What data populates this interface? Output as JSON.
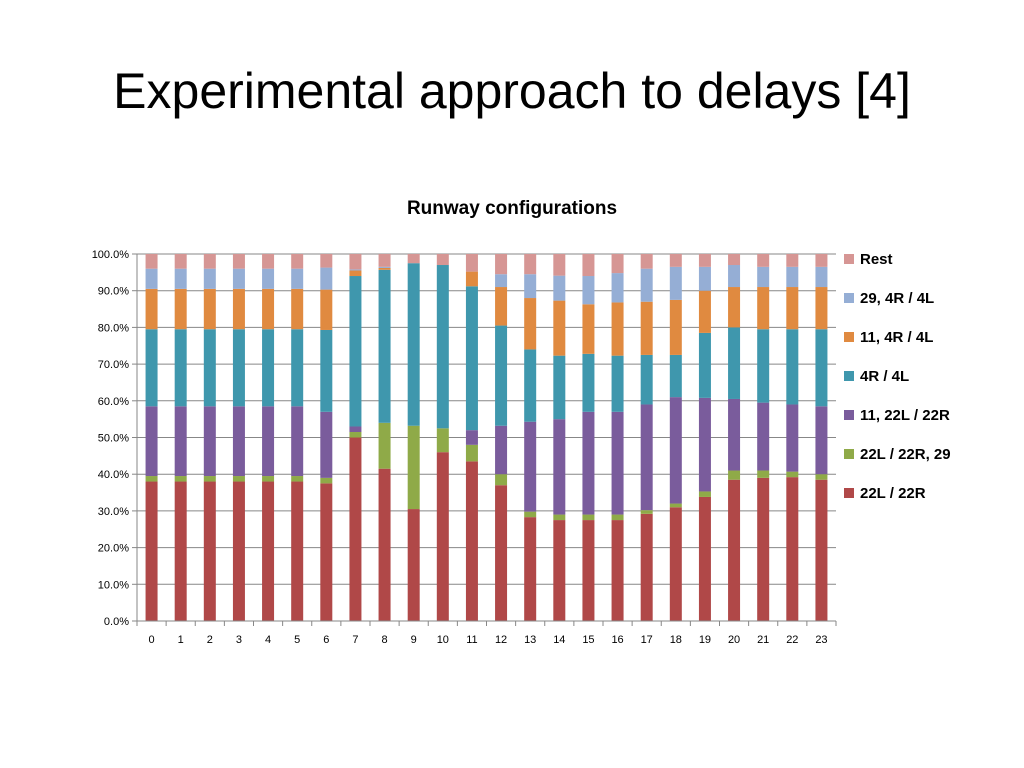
{
  "slide": {
    "title": "Experimental approach to delays [4]"
  },
  "chart_data": {
    "type": "bar",
    "stacked": true,
    "normalized": true,
    "title": "Runway configurations",
    "xlabel": "",
    "ylabel": "",
    "ylim": [
      0,
      100
    ],
    "y_ticks": [
      "0.0%",
      "10.0%",
      "20.0%",
      "30.0%",
      "40.0%",
      "50.0%",
      "60.0%",
      "70.0%",
      "80.0%",
      "90.0%",
      "100.0%"
    ],
    "grid": true,
    "legend_position": "right",
    "categories": [
      "0",
      "1",
      "2",
      "3",
      "4",
      "5",
      "6",
      "7",
      "8",
      "9",
      "10",
      "11",
      "12",
      "13",
      "14",
      "15",
      "16",
      "17",
      "18",
      "19",
      "20",
      "21",
      "22",
      "23"
    ],
    "series": [
      {
        "name": "22L / 22R",
        "color": "#b04848",
        "values": [
          38,
          38,
          38,
          38,
          38,
          38,
          37.5,
          50,
          41.5,
          30.5,
          46,
          43.5,
          37,
          28.3,
          27.5,
          27.5,
          27.5,
          29.2,
          31,
          33.8,
          38.5,
          39,
          39.2,
          38.5
        ]
      },
      {
        "name": "22L / 22R, 29",
        "color": "#8faa48",
        "values": [
          1.5,
          1.5,
          1.5,
          1.5,
          1.5,
          1.5,
          1.5,
          1.5,
          12.5,
          22.7,
          6.5,
          4.5,
          3,
          1.5,
          1.5,
          1.5,
          1.5,
          1,
          1,
          1.5,
          2.5,
          2,
          1.5,
          1.5
        ]
      },
      {
        "name": "11, 22L / 22R",
        "color": "#7a5c9c",
        "values": [
          19,
          19,
          19,
          19,
          19,
          19,
          18,
          1.5,
          0,
          0,
          0,
          4,
          13.2,
          24.5,
          26,
          28,
          28,
          28.8,
          29,
          25.5,
          19.5,
          18.5,
          18.3,
          18.5
        ]
      },
      {
        "name": "4R / 4L",
        "color": "#3f97ad",
        "values": [
          21,
          21,
          21,
          21,
          21,
          21,
          22.3,
          41,
          41.7,
          44.3,
          44.5,
          39.2,
          27.3,
          19.7,
          17.3,
          15.8,
          15.3,
          13.5,
          11.5,
          17.7,
          19.5,
          20,
          20.5,
          21
        ]
      },
      {
        "name": "11, 4R / 4L",
        "color": "#e08a40",
        "values": [
          11,
          11,
          11,
          11,
          11,
          11,
          11,
          1.5,
          0.5,
          0,
          0,
          4,
          10.5,
          14,
          15,
          13.5,
          14.5,
          14.5,
          15,
          11.5,
          11,
          11.5,
          11.5,
          11.5
        ]
      },
      {
        "name": "29, 4R / 4L",
        "color": "#95aed5",
        "values": [
          5.5,
          5.5,
          5.5,
          5.5,
          5.5,
          5.5,
          6,
          0.3,
          0.3,
          0,
          0,
          0,
          3.5,
          6.5,
          6.8,
          7.7,
          8,
          9,
          9,
          6.5,
          6,
          5.5,
          5.5,
          5.5
        ]
      },
      {
        "name": "Rest",
        "color": "#d69694",
        "values": [
          4,
          4,
          4,
          4,
          4,
          4,
          3.7,
          4.2,
          3.5,
          2.5,
          3,
          4.8,
          5.5,
          5.5,
          5.9,
          6,
          5.2,
          4,
          3.5,
          3.5,
          3,
          3.5,
          3.5,
          3.5
        ]
      }
    ]
  }
}
